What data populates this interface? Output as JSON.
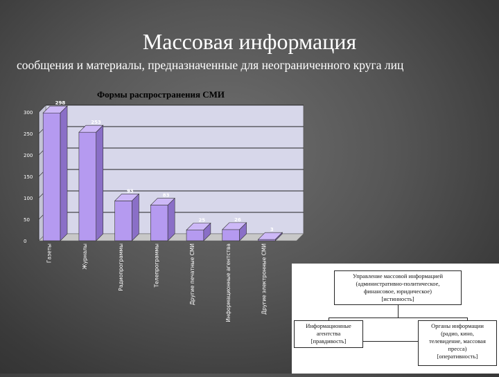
{
  "slide": {
    "title": "Массовая информация",
    "subtitle": "сообщения и материалы, предназначенные для неограниченного круга лиц"
  },
  "chart_data": {
    "type": "bar",
    "title": "Формы распространения СМИ",
    "categories": [
      "Газеты",
      "Журналы",
      "Радиопрограммы",
      "Телепрограммы",
      "Другие печатные СМИ",
      "Информационные агентства",
      "Другие электронные СМИ"
    ],
    "values": [
      298,
      253,
      93,
      83,
      25,
      26,
      3
    ],
    "ylim": [
      0,
      300
    ],
    "yticks": [
      0,
      50,
      100,
      150,
      200,
      250,
      300
    ],
    "grid": true,
    "legend": "none",
    "bar_color": "#b59af0"
  },
  "diagram": {
    "top": "Управление массовой информацией\n(административно-политическое,\nфинансовое, юридическое)\n[истинность]",
    "left": "Информационные\nагентства\n[правдивость]",
    "right": "Органы информации\n(радио, кино,\nтелевидение, массовая\nпресса)\n[оперативность]"
  }
}
